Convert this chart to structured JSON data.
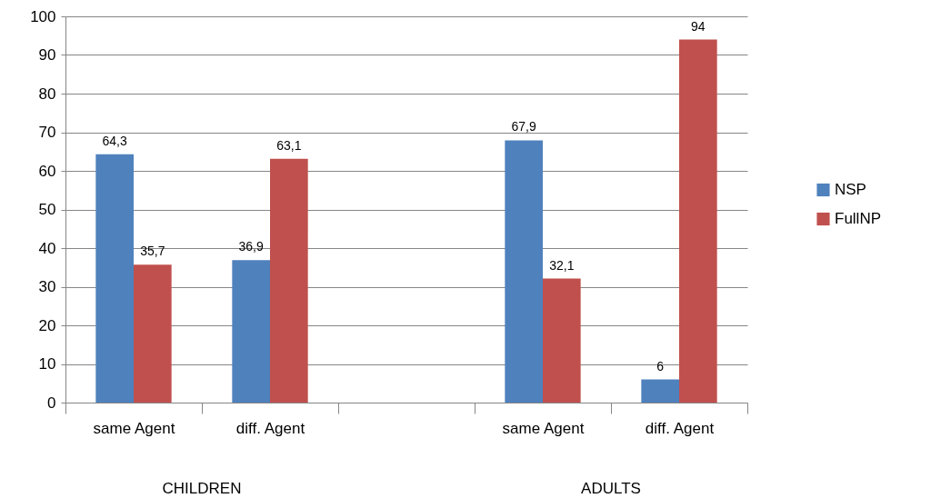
{
  "chart_data": {
    "type": "bar",
    "categories": [
      "same Agent",
      "diff. Agent",
      null,
      "same Agent",
      "diff. Agent"
    ],
    "series": [
      {
        "name": "NSP",
        "color": "#4f81bd",
        "values": [
          64.3,
          36.9,
          null,
          67.9,
          6
        ],
        "value_labels": [
          "64,3",
          "36,9",
          null,
          "67,9",
          "6"
        ]
      },
      {
        "name": "FullNP",
        "color": "#c0504d",
        "values": [
          35.7,
          63.1,
          null,
          32.1,
          94
        ],
        "value_labels": [
          "35,7",
          "63,1",
          null,
          "32,1",
          "94"
        ]
      }
    ],
    "annotations": [
      "CHILDREN",
      "ADULTS"
    ],
    "ylim": [
      0,
      100
    ],
    "yticks": [
      0,
      10,
      20,
      30,
      40,
      50,
      60,
      70,
      80,
      90,
      100
    ],
    "grid": "y",
    "legend": "right"
  }
}
